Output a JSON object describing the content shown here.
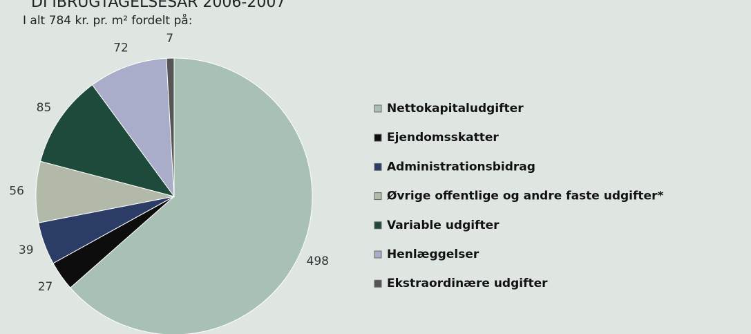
{
  "chart_data": {
    "type": "pie",
    "title": "DI IBRUGTAGELSESÅR 2006-2007",
    "subtitle": "I alt 784 kr. pr. m² fordelt på:",
    "categories": [
      "Nettokapitaludgifter",
      "Ejendomsskatter",
      "Administrationsbidrag",
      "Øvrige offentlige og andre faste udgifter*",
      "Variable udgifter",
      "Henlæggelser",
      "Ekstraordinære udgifter"
    ],
    "values": [
      498,
      27,
      39,
      56,
      85,
      72,
      7
    ],
    "colors": [
      "#a9c1b5",
      "#0d0d0d",
      "#2b3c66",
      "#b3b9a9",
      "#1e4a3b",
      "#a9adca",
      "#555555"
    ],
    "legend": "right"
  }
}
